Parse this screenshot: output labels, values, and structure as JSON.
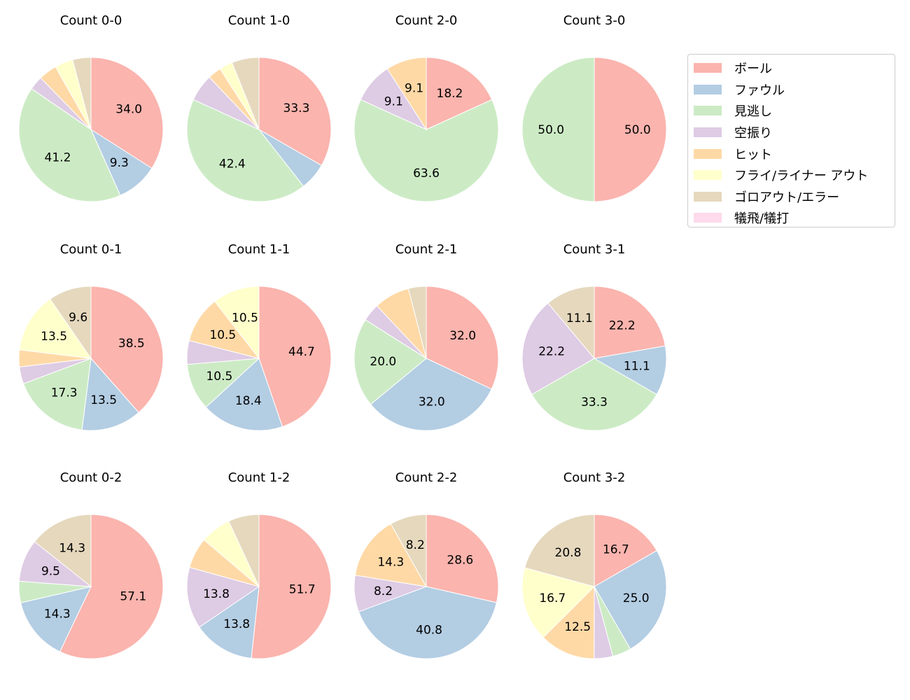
{
  "chart_data": {
    "type": "pie",
    "labels": [
      "ボール",
      "ファウル",
      "見逃し",
      "空振り",
      "ヒット",
      "フライ/ライナー アウト",
      "ゴロアウト/エラー",
      "犠飛/犠打"
    ],
    "colors": [
      "#fbb4ae",
      "#b3cde3",
      "#ccebc5",
      "#decbe4",
      "#fed9a6",
      "#ffffcc",
      "#e5d8bd",
      "#fddaec"
    ],
    "start_angle": 90,
    "direction": "clockwise",
    "legend_position": "right",
    "charts": [
      {
        "title": "Count 0-0",
        "values": [
          34.0,
          9.3,
          41.2,
          3.1,
          4.1,
          4.1,
          4.1,
          0
        ]
      },
      {
        "title": "Count 1-0",
        "values": [
          33.3,
          6.1,
          42.4,
          6.1,
          3.0,
          3.0,
          6.1,
          0
        ]
      },
      {
        "title": "Count 2-0",
        "values": [
          18.2,
          0,
          63.6,
          9.1,
          9.1,
          0,
          0,
          0
        ]
      },
      {
        "title": "Count 3-0",
        "values": [
          50.0,
          0,
          50.0,
          0,
          0,
          0,
          0,
          0
        ]
      },
      {
        "title": "Count 0-1",
        "values": [
          38.5,
          13.5,
          17.3,
          3.8,
          3.8,
          13.5,
          9.6,
          0
        ]
      },
      {
        "title": "Count 1-1",
        "values": [
          44.7,
          18.4,
          10.5,
          5.3,
          10.5,
          10.5,
          0,
          0
        ]
      },
      {
        "title": "Count 2-1",
        "values": [
          32.0,
          32.0,
          20.0,
          4.0,
          8.0,
          0,
          4.0,
          0
        ]
      },
      {
        "title": "Count 3-1",
        "values": [
          22.2,
          11.1,
          33.3,
          22.2,
          0,
          0,
          11.1,
          0
        ]
      },
      {
        "title": "Count 0-2",
        "values": [
          57.1,
          14.3,
          4.8,
          9.5,
          0,
          0,
          14.3,
          0
        ]
      },
      {
        "title": "Count 1-2",
        "values": [
          51.7,
          13.8,
          0,
          13.8,
          6.9,
          6.9,
          6.9,
          0
        ]
      },
      {
        "title": "Count 2-2",
        "values": [
          28.6,
          40.8,
          0,
          8.2,
          14.3,
          0,
          8.2,
          0
        ]
      },
      {
        "title": "Count 3-2",
        "values": [
          16.7,
          25.0,
          4.2,
          4.2,
          12.5,
          16.7,
          20.8,
          0
        ]
      }
    ]
  }
}
